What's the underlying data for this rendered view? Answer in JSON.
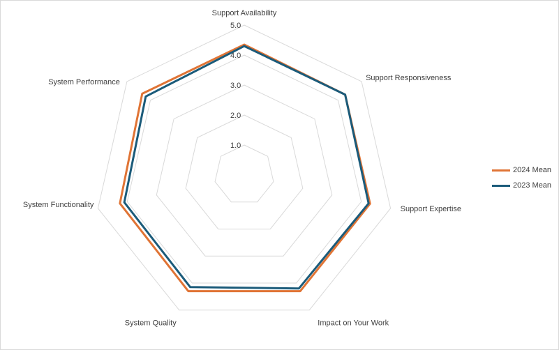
{
  "chart_data": {
    "type": "radar",
    "categories": [
      "Support Availability",
      "Support Responsiveness",
      "Support Expertise",
      "Impact on Your Work",
      "System Quality",
      "System Functionality",
      "System Performance"
    ],
    "category_order_note": "",
    "series": [
      {
        "name": "2024 Mean",
        "color": "#e07435",
        "values": [
          4.35,
          4.3,
          4.3,
          4.3,
          4.3,
          4.25,
          4.35
        ]
      },
      {
        "name": "2023 Mean",
        "color": "#1b5b7a",
        "values": [
          4.3,
          4.3,
          4.25,
          4.2,
          4.15,
          4.1,
          4.2
        ]
      }
    ],
    "radial_ticks": [
      "1.0",
      "2.0",
      "3.0",
      "4.0",
      "5.0"
    ],
    "range": [
      0,
      5
    ],
    "grid": true,
    "legend": "right"
  }
}
